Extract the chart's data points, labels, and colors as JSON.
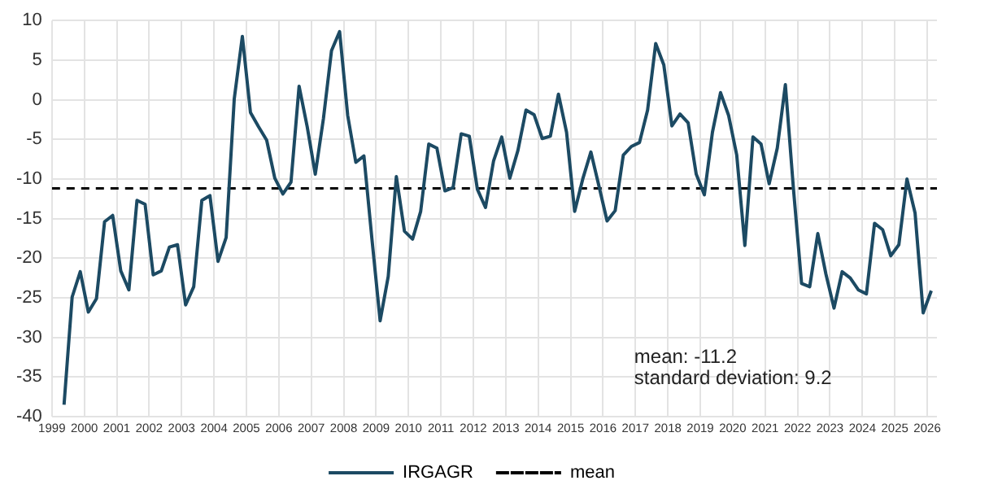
{
  "chart_data": {
    "type": "line",
    "xlim": [
      1999,
      2026.3
    ],
    "xticks": [
      1999,
      2000,
      2001,
      2002,
      2003,
      2004,
      2005,
      2006,
      2007,
      2008,
      2009,
      2010,
      2011,
      2012,
      2013,
      2014,
      2015,
      2016,
      2017,
      2018,
      2019,
      2020,
      2021,
      2022,
      2023,
      2024,
      2025,
      2026
    ],
    "ylim": [
      -40,
      10
    ],
    "yticks": [
      -40,
      -35,
      -30,
      -25,
      -20,
      -15,
      -10,
      -5,
      0,
      5,
      10
    ],
    "grid": true,
    "legend": "bottom",
    "marker": "none",
    "line_style": "solid",
    "x": [
      1999.375,
      1999.625,
      1999.875,
      2000.125,
      2000.375,
      2000.625,
      2000.875,
      2001.125,
      2001.375,
      2001.625,
      2001.875,
      2002.125,
      2002.375,
      2002.625,
      2002.875,
      2003.125,
      2003.375,
      2003.625,
      2003.875,
      2004.125,
      2004.375,
      2004.625,
      2004.875,
      2005.125,
      2005.375,
      2005.625,
      2005.875,
      2006.125,
      2006.375,
      2006.625,
      2006.875,
      2007.125,
      2007.375,
      2007.625,
      2007.875,
      2008.125,
      2008.375,
      2008.625,
      2008.875,
      2009.125,
      2009.375,
      2009.625,
      2009.875,
      2010.125,
      2010.375,
      2010.625,
      2010.875,
      2011.125,
      2011.375,
      2011.625,
      2011.875,
      2012.125,
      2012.375,
      2012.625,
      2012.875,
      2013.125,
      2013.375,
      2013.625,
      2013.875,
      2014.125,
      2014.375,
      2014.625,
      2014.875,
      2015.125,
      2015.375,
      2015.625,
      2015.875,
      2016.125,
      2016.375,
      2016.625,
      2016.875,
      2017.125,
      2017.375,
      2017.625,
      2017.875,
      2018.125,
      2018.375,
      2018.625,
      2018.875,
      2019.125,
      2019.375,
      2019.625,
      2019.875,
      2020.125,
      2020.375,
      2020.625,
      2020.875,
      2021.125,
      2021.375,
      2021.625,
      2021.875,
      2022.125,
      2022.375,
      2022.625,
      2022.875,
      2023.125,
      2023.375,
      2023.625,
      2023.875,
      2024.125,
      2024.375,
      2024.625,
      2024.875,
      2025.125,
      2025.375,
      2025.625,
      2025.875,
      2026.125
    ],
    "series": [
      {
        "name": "IRGAGR",
        "color": "#1c4a63",
        "values": [
          -38.5,
          -24.9,
          -21.7,
          -26.8,
          -25.1,
          -15.4,
          -14.6,
          -21.6,
          -24,
          -12.7,
          -13.2,
          -22.1,
          -21.6,
          -18.6,
          -18.3,
          -25.9,
          -23.6,
          -12.7,
          -12.1,
          -20.4,
          -17.4,
          0.1,
          8,
          -1.6,
          -3.4,
          -5.1,
          -9.9,
          -11.9,
          -10.4,
          1.7,
          -3.4,
          -9.4,
          -2.4,
          6.2,
          8.6,
          -2,
          -7.9,
          -7.1,
          -17.7,
          -27.9,
          -22.3,
          -9.7,
          -16.6,
          -17.6,
          -14.1,
          -5.6,
          -6.1,
          -11.5,
          -11.1,
          -4.3,
          -4.6,
          -11.3,
          -13.6,
          -7.7,
          -4.7,
          -9.9,
          -6.4,
          -1.3,
          -1.9,
          -4.9,
          -4.6,
          0.7,
          -4.1,
          -14.1,
          -10,
          -6.6,
          -10.9,
          -15.3,
          -14,
          -7,
          -5.9,
          -5.4,
          -1.3,
          7.1,
          4.4,
          -3.3,
          -1.8,
          -2.9,
          -9.4,
          -12,
          -4.1,
          0.9,
          -2,
          -7,
          -18.4,
          -4.7,
          -5.6,
          -10.6,
          -6.1,
          1.9,
          -11.3,
          -23.2,
          -23.6,
          -16.9,
          -22,
          -26.3,
          -21.7,
          -22.5,
          -24,
          -24.5,
          -15.6,
          -16.4,
          -19.7,
          -18.3,
          -10,
          -14.3,
          -26.9,
          -24.1
        ]
      }
    ],
    "ref_lines": [
      {
        "axis": "y",
        "value": -11.2,
        "label": "mean",
        "color": "#000000",
        "line_style": "dashed"
      }
    ],
    "annotations": [
      "mean: -11.2",
      "standard deviation: 9.2"
    ]
  }
}
